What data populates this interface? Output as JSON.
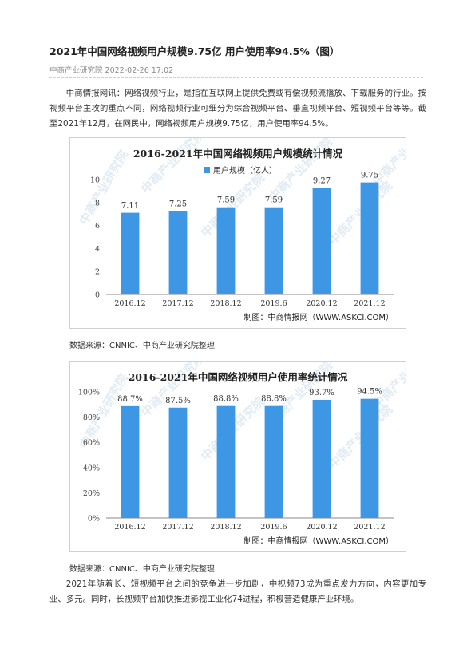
{
  "article": {
    "title": "2021年中国网络视频用户规模9.75亿 用户使用率94.5%（图）",
    "source": "中商产业研究院",
    "date": "2022-02-26 17:02",
    "intro": "中商情报网讯：网络视频行业，是指在互联网上提供免费或有偿视频流播放、下载服务的行业。按视频平台主攻的重点不同，网络视频行业可细分为综合视频平台、垂直视频平台、短视频平台等等。截至2021年12月，在网民中，网络视频用户规模9.75亿，用户使用率94.5%。",
    "conclusion": "2021年随着长、短视频平台之间的竞争进一步加剧，中视频73成为重点发力方向，内容更加专业、多元。同时，长视频平台加快推进影视工业化74进程，积极营造健康产业环境。"
  },
  "charts": [
    {
      "source_label": "数据来源：CNNIC、中商产业研究院整理",
      "credit": "制图：中商情报网（WWW.ASKCI.COM）",
      "watermark": "中商产业研究院",
      "bar_color": "#3d97e4",
      "chart_data": {
        "type": "bar",
        "title": "2016-2021年中国网络视频用户规模统计情况",
        "categories": [
          "2016.12",
          "2017.12",
          "2018.12",
          "2019.6",
          "2020.12",
          "2021.12"
        ],
        "series": [
          {
            "name": "用户规模（亿人）",
            "values": [
              7.11,
              7.25,
              7.59,
              7.59,
              9.27,
              9.75
            ]
          }
        ],
        "data_labels": [
          "7.11",
          "7.25",
          "7.59",
          "7.59",
          "9.27",
          "9.75"
        ],
        "yticks": [
          "0",
          "2",
          "4",
          "6",
          "8",
          "10"
        ],
        "ylim": [
          0,
          10
        ],
        "legend": "top"
      }
    },
    {
      "source_label": "数据来源：CNNIC、中商产业研究院整理",
      "credit": "制图：中商情报网（WWW.ASKCI.COM）",
      "watermark": "中商产业研究院",
      "bar_color": "#3d97e4",
      "chart_data": {
        "type": "bar",
        "title": "2016-2021年中国网络视频用户使用率统计情况",
        "categories": [
          "2016.12",
          "2017.12",
          "2018.12",
          "2019.6",
          "2020.12",
          "2021.12"
        ],
        "series": [
          {
            "values": [
              88.7,
              87.5,
              88.8,
              88.8,
              93.7,
              94.5
            ]
          }
        ],
        "data_labels": [
          "88.7%",
          "87.5%",
          "88.8%",
          "88.8%",
          "93.7%",
          "94.5%"
        ],
        "yticks": [
          "0%",
          "20%",
          "40%",
          "60%",
          "80%",
          "100%"
        ],
        "ylim": [
          0,
          100
        ]
      }
    }
  ]
}
